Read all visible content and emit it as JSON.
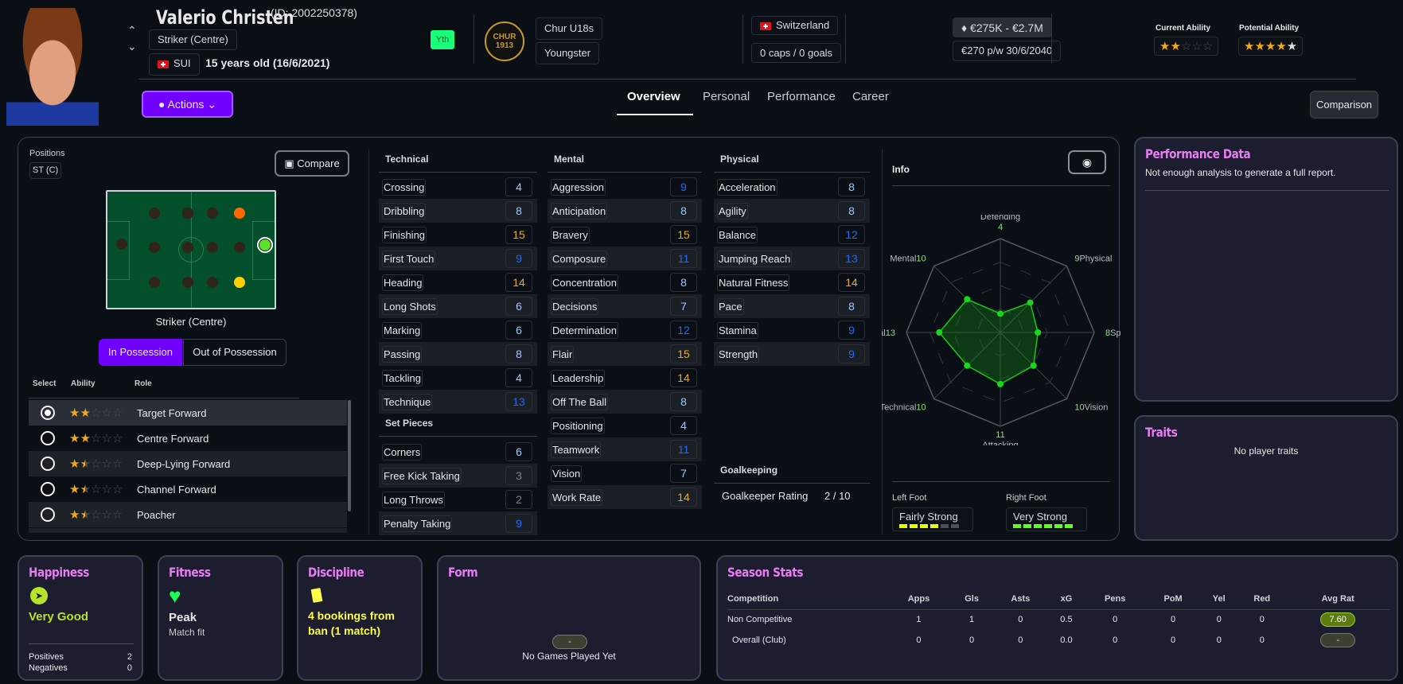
{
  "player": {
    "name": "Valerio Christen",
    "id": "(ID: 2002250378)",
    "position": "Striker (Centre)",
    "nation_code": "SUI",
    "age": "15 years old (16/6/2021)",
    "badge": "Yth",
    "club_team": "Chur U18s",
    "squad_status": "Youngster",
    "club_logo_text": "CHUR 1913",
    "nation": "Switzerland",
    "caps": "0 caps / 0 goals",
    "value": "€275K - €2.7M",
    "contract": "€270 p/w 30/6/2040",
    "current_ability_label": "Current Ability",
    "potential_ability_label": "Potential Ability",
    "current_ability_stars": 2,
    "potential_ability_stars": 4.5
  },
  "actions_label": "Actions",
  "tabs": [
    "Overview",
    "Personal",
    "Performance",
    "Career"
  ],
  "comparison_label": "Comparison",
  "positions": {
    "label": "Positions",
    "value": "ST (C)",
    "compare_label": "Compare",
    "pitch_caption": "Striker (Centre)",
    "toggle": [
      "In Possession",
      "Out of Possession"
    ],
    "role_headers": [
      "Select",
      "Ability",
      "Role"
    ],
    "roles": [
      {
        "name": "Target Forward",
        "stars": 2,
        "selected": true
      },
      {
        "name": "Centre Forward",
        "stars": 2,
        "selected": false
      },
      {
        "name": "Deep-Lying Forward",
        "stars": 1.5,
        "selected": false
      },
      {
        "name": "Channel Forward",
        "stars": 1.5,
        "selected": false
      },
      {
        "name": "Poacher",
        "stars": 1.5,
        "selected": false
      }
    ]
  },
  "technical": {
    "title": "Technical",
    "items": [
      [
        "Crossing",
        4
      ],
      [
        "Dribbling",
        8
      ],
      [
        "Finishing",
        15
      ],
      [
        "First Touch",
        9
      ],
      [
        "Heading",
        14
      ],
      [
        "Long Shots",
        6
      ],
      [
        "Marking",
        6
      ],
      [
        "Passing",
        8
      ],
      [
        "Tackling",
        4
      ],
      [
        "Technique",
        13
      ]
    ]
  },
  "set_pieces": {
    "title": "Set Pieces",
    "items": [
      [
        "Corners",
        6
      ],
      [
        "Free Kick Taking",
        3
      ],
      [
        "Long Throws",
        2
      ],
      [
        "Penalty Taking",
        9
      ]
    ]
  },
  "mental": {
    "title": "Mental",
    "items": [
      [
        "Aggression",
        9
      ],
      [
        "Anticipation",
        8
      ],
      [
        "Bravery",
        15
      ],
      [
        "Composure",
        11
      ],
      [
        "Concentration",
        8
      ],
      [
        "Decisions",
        7
      ],
      [
        "Determination",
        12
      ],
      [
        "Flair",
        15
      ],
      [
        "Leadership",
        14
      ],
      [
        "Off The Ball",
        8
      ],
      [
        "Positioning",
        4
      ],
      [
        "Teamwork",
        11
      ],
      [
        "Vision",
        7
      ],
      [
        "Work Rate",
        14
      ]
    ]
  },
  "physical": {
    "title": "Physical",
    "items": [
      [
        "Acceleration",
        8
      ],
      [
        "Agility",
        8
      ],
      [
        "Balance",
        12
      ],
      [
        "Jumping Reach",
        13
      ],
      [
        "Natural Fitness",
        14
      ],
      [
        "Pace",
        8
      ],
      [
        "Stamina",
        9
      ],
      [
        "Strength",
        9
      ]
    ]
  },
  "goalkeeping": {
    "title": "Goalkeeping",
    "label": "Goalkeeper Rating",
    "value": "2 / 10"
  },
  "info": {
    "title": "Info",
    "radar": [
      [
        "Defending",
        4
      ],
      [
        "Physical",
        9
      ],
      [
        "Speed",
        8
      ],
      [
        "Vision",
        10
      ],
      [
        "Attacking",
        11
      ],
      [
        "Technical",
        10
      ],
      [
        "Aerial",
        13
      ],
      [
        "Mental",
        10
      ]
    ],
    "left_foot_label": "Left Foot",
    "left_foot": "Fairly Strong",
    "left_foot_level": 4,
    "right_foot_label": "Right Foot",
    "right_foot": "Very Strong",
    "right_foot_level": 6
  },
  "performance": {
    "title": "Performance Data",
    "text": "Not enough analysis to generate a full report."
  },
  "traits": {
    "title": "Traits",
    "text": "No player traits"
  },
  "happiness": {
    "title": "Happiness",
    "value": "Very Good",
    "positives_label": "Positives",
    "positives": "2",
    "negatives_label": "Negatives",
    "negatives": "0"
  },
  "fitness": {
    "title": "Fitness",
    "value": "Peak",
    "sub": "Match fit"
  },
  "discipline": {
    "title": "Discipline",
    "value": "4 bookings from ban (1 match)"
  },
  "form": {
    "title": "Form",
    "pill": "-",
    "text": "No Games Played Yet"
  },
  "season": {
    "title": "Season Stats",
    "headers": [
      "Competition",
      "Apps",
      "Gls",
      "Asts",
      "xG",
      "Pens",
      "PoM",
      "Yel",
      "Red",
      "Avg Rat"
    ],
    "rows": [
      [
        "Non Competitive",
        "1",
        "1",
        "0",
        "0.5",
        "0",
        "0",
        "0",
        "0",
        "7.60"
      ],
      [
        "Overall (Club)",
        "0",
        "0",
        "0",
        "0.0",
        "0",
        "0",
        "0",
        "0",
        "-"
      ]
    ]
  },
  "colors": {
    "accent": "#7000ff",
    "card_title": "#e77ef2",
    "yth": "#19ff7a"
  }
}
